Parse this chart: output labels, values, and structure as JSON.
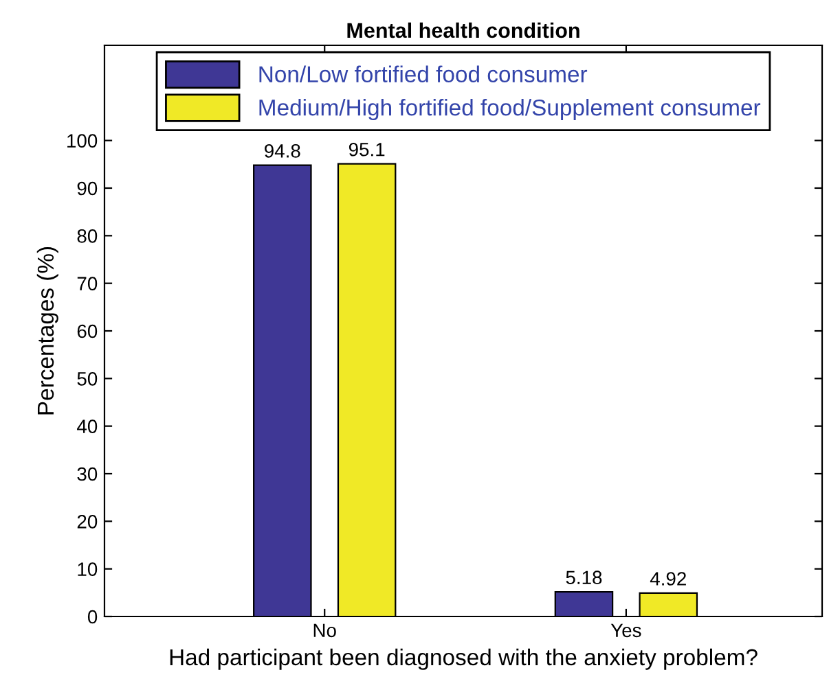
{
  "chart_data": {
    "type": "bar",
    "title": "Mental health condition",
    "xlabel": "Had participant been diagnosed with the anxiety problem?",
    "ylabel": "Percentages (%)",
    "categories": [
      "No",
      "Yes"
    ],
    "series": [
      {
        "name": "Non/Low fortified food consumer",
        "color": "#3f3795",
        "values": [
          94.8,
          5.18
        ]
      },
      {
        "name": "Medium/High fortified food/Supplement consumer",
        "color": "#f0e926",
        "values": [
          95.1,
          4.92
        ]
      }
    ],
    "ylim": [
      0,
      120
    ],
    "yticks": [
      0,
      10,
      20,
      30,
      40,
      50,
      60,
      70,
      80,
      90,
      100
    ],
    "data_labels": true,
    "legend": "top",
    "grid": false
  }
}
